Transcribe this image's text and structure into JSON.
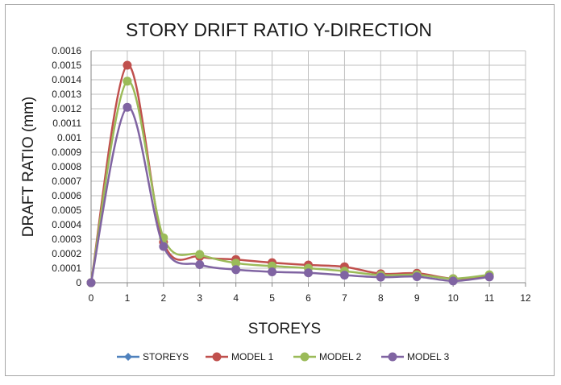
{
  "chart_data": {
    "type": "line",
    "title": "STORY DRIFT RATIO Y-DIRECTION",
    "xlabel": "STOREYS",
    "ylabel": "DRAFT RATIO (mm)",
    "xlim": [
      0,
      12
    ],
    "ylim": [
      0,
      0.0016
    ],
    "x_ticks": [
      "0",
      "1",
      "2",
      "3",
      "4",
      "5",
      "6",
      "7",
      "8",
      "9",
      "10",
      "11",
      "12"
    ],
    "y_ticks": [
      "0",
      "0.0001",
      "0.0002",
      "0.0003",
      "0.0004",
      "0.0005",
      "0.0006",
      "0.0007",
      "0.0008",
      "0.0009",
      "0.001",
      "0.0011",
      "0.0012",
      "0.0013",
      "0.0014",
      "0.0015",
      "0.0016"
    ],
    "grid": true,
    "smooth": true,
    "legend_position": "bottom",
    "series": [
      {
        "name": "STOREYS",
        "color": "#4f81bd",
        "marker": "diamond",
        "x": [],
        "y": []
      },
      {
        "name": "MODEL 1",
        "color": "#c0504d",
        "marker": "circle",
        "x": [
          0,
          1,
          2,
          3,
          4,
          5,
          6,
          7,
          8,
          9,
          10,
          11
        ],
        "y": [
          0,
          0.0015,
          0.00028,
          0.00018,
          0.00016,
          0.000138,
          0.000122,
          0.00011,
          6.2e-05,
          6.5e-05,
          2.8e-05,
          4.2e-05
        ]
      },
      {
        "name": "MODEL 2",
        "color": "#9bbb59",
        "marker": "circle",
        "x": [
          0,
          1,
          2,
          3,
          4,
          5,
          6,
          7,
          8,
          9,
          10,
          11
        ],
        "y": [
          0,
          0.00139,
          0.00031,
          0.000195,
          0.000135,
          0.000115,
          0.0001,
          8e-05,
          5.2e-05,
          5.5e-05,
          2.8e-05,
          5.5e-05
        ]
      },
      {
        "name": "MODEL 3",
        "color": "#8064a2",
        "marker": "circle",
        "x": [
          0,
          1,
          2,
          3,
          4,
          5,
          6,
          7,
          8,
          9,
          10,
          11
        ],
        "y": [
          0,
          0.00121,
          0.00025,
          0.000125,
          9e-05,
          7.5e-05,
          6.8e-05,
          5.2e-05,
          3.8e-05,
          4.2e-05,
          1.2e-05,
          4e-05
        ]
      }
    ]
  }
}
